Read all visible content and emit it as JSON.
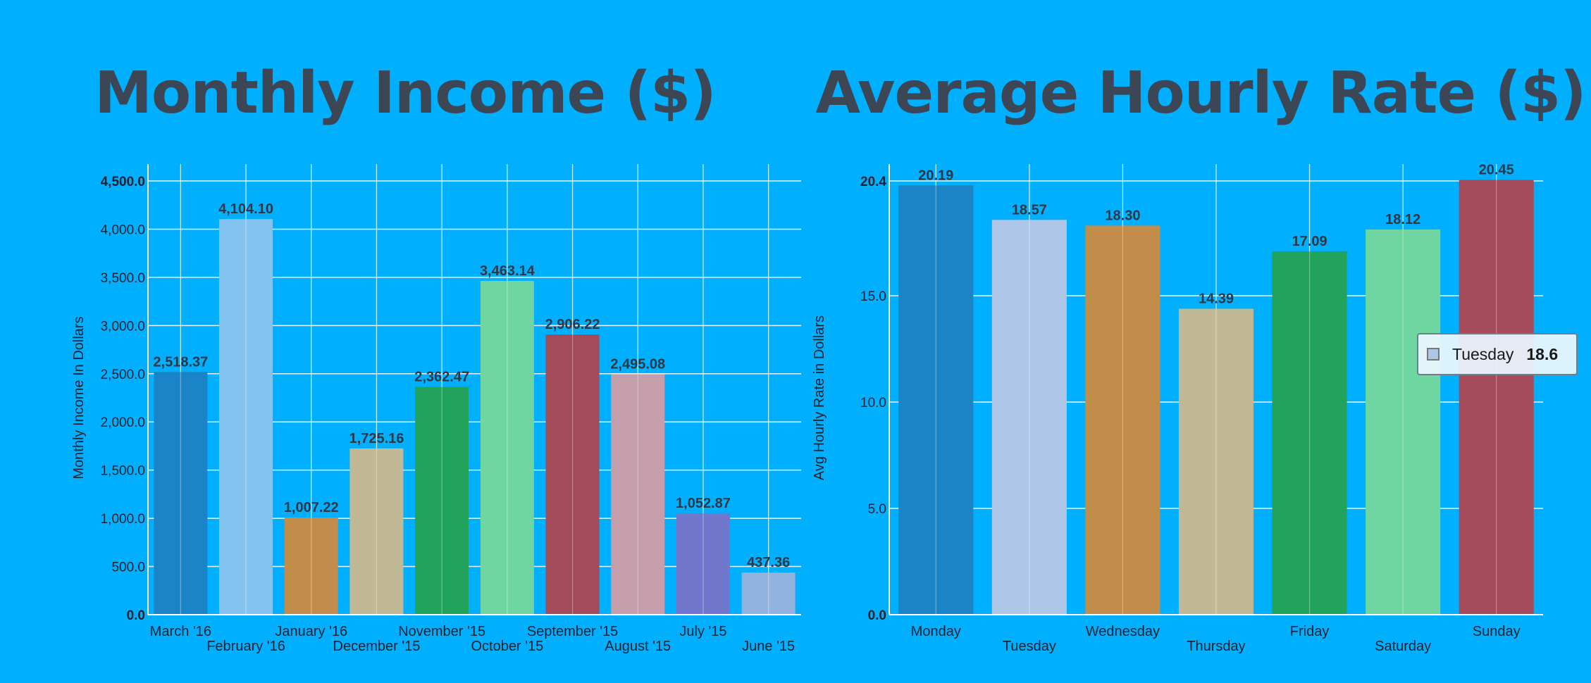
{
  "chart_data": [
    {
      "type": "bar",
      "title": "Monthly Income ($)",
      "ylabel": "Monthly Income In Dollars",
      "xlabel": "",
      "categories": [
        "March '16",
        "February '16",
        "January '16",
        "December '15",
        "November '15",
        "October '15",
        "September '15",
        "August '15",
        "July '15",
        "June '15"
      ],
      "values": [
        2518.37,
        4104.1,
        1007.22,
        1725.16,
        2362.47,
        3463.14,
        2906.22,
        2495.08,
        1052.87,
        437.36
      ],
      "value_labels": [
        "2,518.37",
        "4,104.10",
        "1,007.22",
        "1,725.16",
        "2,362.47",
        "3,463.14",
        "2,906.22",
        "2,495.08",
        "1,052.87",
        "437.36"
      ],
      "colors": [
        "#1b84c6",
        "#84c3f0",
        "#c28c4a",
        "#c1b896",
        "#21a35c",
        "#6fd6a2",
        "#a44a5a",
        "#c49fab",
        "#7077cc",
        "#92b2e0"
      ],
      "ylim": [
        0,
        4500
      ],
      "y_ticks": [
        0,
        500,
        1000,
        1500,
        2000,
        2500,
        3000,
        3500,
        4000,
        4500
      ],
      "y_tick_labels": [
        "0.0",
        "500.0",
        "1,000.0",
        "1,500.0",
        "2,000.0",
        "2,500.0",
        "3,000.0",
        "3,500.0",
        "4,000.0",
        "4,500.0"
      ],
      "grid": true,
      "legend": "none"
    },
    {
      "type": "bar",
      "title": "Average Hourly Rate ($)",
      "ylabel": "Avg Hourly Rate in Dollars",
      "xlabel": "",
      "categories": [
        "Monday",
        "Tuesday",
        "Wednesday",
        "Thursday",
        "Friday",
        "Saturday",
        "Sunday"
      ],
      "values": [
        20.19,
        18.57,
        18.3,
        14.39,
        17.09,
        18.12,
        20.45
      ],
      "value_labels": [
        "20.19",
        "18.57",
        "18.30",
        "14.39",
        "17.09",
        "18.12",
        "20.45"
      ],
      "colors": [
        "#1b84c6",
        "#aec7e8",
        "#c28c4a",
        "#c1b896",
        "#21a35c",
        "#6fd6a2",
        "#a44a5a"
      ],
      "ylim": [
        0,
        20.4
      ],
      "y_ticks": [
        0,
        5,
        10,
        15,
        20.4
      ],
      "y_tick_labels": [
        "0.0",
        "5.0",
        "10.0",
        "15.0",
        "20.4"
      ],
      "grid": true,
      "legend": "none",
      "tooltip": {
        "label": "Tuesday",
        "value": "18.6",
        "color": "#aec7e8"
      }
    }
  ]
}
